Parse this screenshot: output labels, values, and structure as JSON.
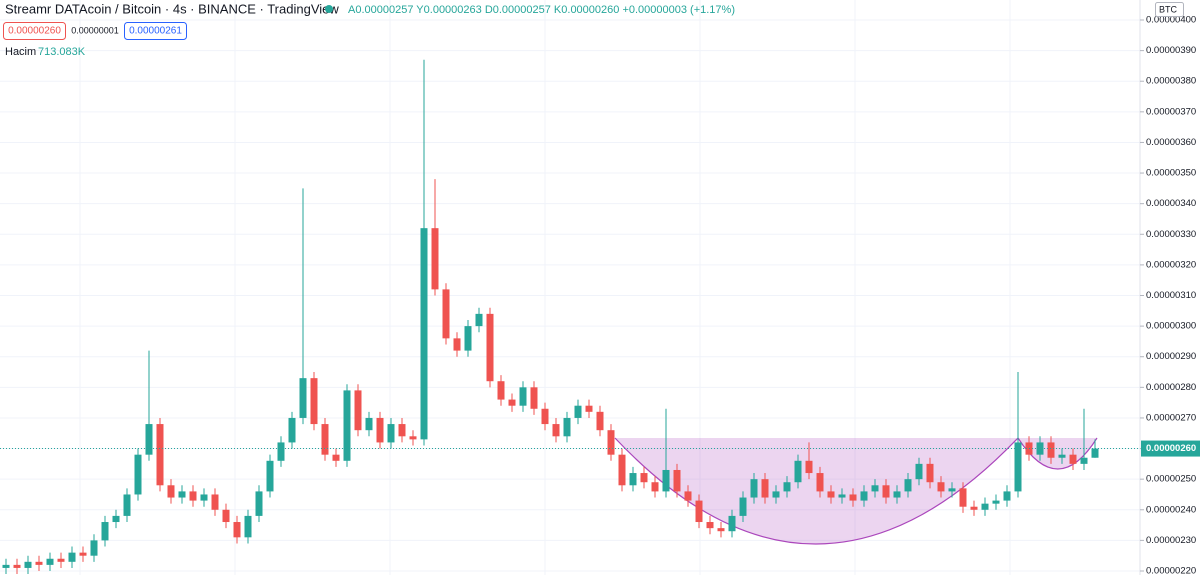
{
  "header": {
    "title": "Streamr DATAcoin / Bitcoin · 4s · BINANCE · TradingView",
    "ohlc": "A0.00000257 Y0.00000263 D0.00000257 K0.00000260 +0.00000003 (+1.17%)",
    "sell": "0.00000260",
    "spread": "0.00000001",
    "buy": "0.00000261",
    "volume_label": "Hacim",
    "volume_value": "713.083K",
    "currency": "BTC"
  },
  "chart_data": {
    "type": "candlestick",
    "grid": true,
    "up_color": "#26a69a",
    "down_color": "#ef5350",
    "ylim": [
      2.2e-06,
      4e-06
    ],
    "yticks": [
      {
        "value": 2.2e-06,
        "label": "0.00000220"
      },
      {
        "value": 2.3e-06,
        "label": "0.00000230"
      },
      {
        "value": 2.4e-06,
        "label": "0.00000240"
      },
      {
        "value": 2.5e-06,
        "label": "0.00000250"
      },
      {
        "value": 2.6e-06,
        "label": "0.00000260"
      },
      {
        "value": 2.7e-06,
        "label": "0.00000270"
      },
      {
        "value": 2.8e-06,
        "label": "0.00000280"
      },
      {
        "value": 2.9e-06,
        "label": "0.00000290"
      },
      {
        "value": 3e-06,
        "label": "0.00000300"
      },
      {
        "value": 3.1e-06,
        "label": "0.00000310"
      },
      {
        "value": 3.2e-06,
        "label": "0.00000320"
      },
      {
        "value": 3.3e-06,
        "label": "0.00000330"
      },
      {
        "value": 3.4e-06,
        "label": "0.00000340"
      },
      {
        "value": 3.5e-06,
        "label": "0.00000350"
      },
      {
        "value": 3.6e-06,
        "label": "0.00000360"
      },
      {
        "value": 3.7e-06,
        "label": "0.00000370"
      },
      {
        "value": 3.8e-06,
        "label": "0.00000380"
      },
      {
        "value": 3.9e-06,
        "label": "0.00000390"
      },
      {
        "value": 4e-06,
        "label": "0.00000400"
      }
    ],
    "last_price": {
      "value": 2.6e-06,
      "label": "0.00000260"
    },
    "open": [
      2.21e-06,
      2.22e-06,
      2.21e-06,
      2.23e-06,
      2.22e-06,
      2.24e-06,
      2.23e-06,
      2.26e-06,
      2.25e-06,
      2.3e-06,
      2.36e-06,
      2.38e-06,
      2.45e-06,
      2.58e-06,
      2.68e-06,
      2.48e-06,
      2.44e-06,
      2.46e-06,
      2.43e-06,
      2.45e-06,
      2.4e-06,
      2.36e-06,
      2.31e-06,
      2.38e-06,
      2.46e-06,
      2.56e-06,
      2.62e-06,
      2.7e-06,
      2.83e-06,
      2.68e-06,
      2.58e-06,
      2.56e-06,
      2.79e-06,
      2.66e-06,
      2.7e-06,
      2.62e-06,
      2.68e-06,
      2.64e-06,
      2.63e-06,
      3.32e-06,
      3.12e-06,
      2.96e-06,
      2.92e-06,
      3e-06,
      3.04e-06,
      2.82e-06,
      2.76e-06,
      2.74e-06,
      2.8e-06,
      2.73e-06,
      2.68e-06,
      2.64e-06,
      2.7e-06,
      2.74e-06,
      2.72e-06,
      2.66e-06,
      2.58e-06,
      2.48e-06,
      2.52e-06,
      2.49e-06,
      2.46e-06,
      2.53e-06,
      2.46e-06,
      2.43e-06,
      2.36e-06,
      2.34e-06,
      2.33e-06,
      2.38e-06,
      2.44e-06,
      2.5e-06,
      2.44e-06,
      2.46e-06,
      2.49e-06,
      2.56e-06,
      2.52e-06,
      2.46e-06,
      2.44e-06,
      2.45e-06,
      2.43e-06,
      2.46e-06,
      2.48e-06,
      2.44e-06,
      2.46e-06,
      2.5e-06,
      2.55e-06,
      2.49e-06,
      2.46e-06,
      2.47e-06,
      2.41e-06,
      2.4e-06,
      2.42e-06,
      2.43e-06,
      2.46e-06,
      2.62e-06,
      2.58e-06,
      2.62e-06,
      2.57e-06,
      2.58e-06,
      2.55e-06,
      2.57e-06
    ],
    "high": [
      2.24e-06,
      2.24e-06,
      2.25e-06,
      2.25e-06,
      2.26e-06,
      2.26e-06,
      2.28e-06,
      2.28e-06,
      2.32e-06,
      2.38e-06,
      2.4e-06,
      2.47e-06,
      2.6e-06,
      2.92e-06,
      2.7e-06,
      2.5e-06,
      2.48e-06,
      2.48e-06,
      2.47e-06,
      2.47e-06,
      2.42e-06,
      2.38e-06,
      2.4e-06,
      2.48e-06,
      2.58e-06,
      2.64e-06,
      2.72e-06,
      3.45e-06,
      2.85e-06,
      2.7e-06,
      2.6e-06,
      2.81e-06,
      2.81e-06,
      2.72e-06,
      2.72e-06,
      2.7e-06,
      2.7e-06,
      2.66e-06,
      3.87e-06,
      3.48e-06,
      3.14e-06,
      2.98e-06,
      3.02e-06,
      3.06e-06,
      3.06e-06,
      2.84e-06,
      2.78e-06,
      2.82e-06,
      2.82e-06,
      2.75e-06,
      2.7e-06,
      2.72e-06,
      2.76e-06,
      2.76e-06,
      2.74e-06,
      2.68e-06,
      2.6e-06,
      2.54e-06,
      2.54e-06,
      2.51e-06,
      2.73e-06,
      2.55e-06,
      2.48e-06,
      2.45e-06,
      2.38e-06,
      2.36e-06,
      2.4e-06,
      2.46e-06,
      2.52e-06,
      2.52e-06,
      2.48e-06,
      2.51e-06,
      2.58e-06,
      2.62e-06,
      2.54e-06,
      2.48e-06,
      2.47e-06,
      2.47e-06,
      2.48e-06,
      2.5e-06,
      2.5e-06,
      2.48e-06,
      2.52e-06,
      2.57e-06,
      2.57e-06,
      2.51e-06,
      2.49e-06,
      2.49e-06,
      2.43e-06,
      2.44e-06,
      2.45e-06,
      2.48e-06,
      2.85e-06,
      2.64e-06,
      2.64e-06,
      2.64e-06,
      2.6e-06,
      2.6e-06,
      2.73e-06,
      2.63e-06
    ],
    "low": [
      2.19e-06,
      2.19e-06,
      2.19e-06,
      2.2e-06,
      2.2e-06,
      2.21e-06,
      2.21e-06,
      2.23e-06,
      2.23e-06,
      2.28e-06,
      2.34e-06,
      2.36e-06,
      2.43e-06,
      2.56e-06,
      2.46e-06,
      2.42e-06,
      2.42e-06,
      2.41e-06,
      2.41e-06,
      2.38e-06,
      2.34e-06,
      2.29e-06,
      2.29e-06,
      2.36e-06,
      2.44e-06,
      2.54e-06,
      2.6e-06,
      2.68e-06,
      2.66e-06,
      2.56e-06,
      2.54e-06,
      2.54e-06,
      2.64e-06,
      2.64e-06,
      2.6e-06,
      2.6e-06,
      2.62e-06,
      2.61e-06,
      2.61e-06,
      3.1e-06,
      2.94e-06,
      2.9e-06,
      2.9e-06,
      2.98e-06,
      2.8e-06,
      2.74e-06,
      2.72e-06,
      2.72e-06,
      2.71e-06,
      2.66e-06,
      2.62e-06,
      2.62e-06,
      2.68e-06,
      2.7e-06,
      2.64e-06,
      2.56e-06,
      2.46e-06,
      2.46e-06,
      2.47e-06,
      2.44e-06,
      2.44e-06,
      2.44e-06,
      2.41e-06,
      2.34e-06,
      2.32e-06,
      2.31e-06,
      2.31e-06,
      2.36e-06,
      2.42e-06,
      2.42e-06,
      2.42e-06,
      2.44e-06,
      2.47e-06,
      2.5e-06,
      2.44e-06,
      2.42e-06,
      2.42e-06,
      2.41e-06,
      2.41e-06,
      2.44e-06,
      2.42e-06,
      2.42e-06,
      2.44e-06,
      2.48e-06,
      2.47e-06,
      2.44e-06,
      2.44e-06,
      2.39e-06,
      2.38e-06,
      2.38e-06,
      2.4e-06,
      2.41e-06,
      2.44e-06,
      2.56e-06,
      2.56e-06,
      2.55e-06,
      2.55e-06,
      2.53e-06,
      2.53e-06,
      2.57e-06
    ],
    "close": [
      2.22e-06,
      2.21e-06,
      2.23e-06,
      2.22e-06,
      2.24e-06,
      2.23e-06,
      2.26e-06,
      2.25e-06,
      2.3e-06,
      2.36e-06,
      2.38e-06,
      2.45e-06,
      2.58e-06,
      2.68e-06,
      2.48e-06,
      2.44e-06,
      2.46e-06,
      2.43e-06,
      2.45e-06,
      2.4e-06,
      2.36e-06,
      2.31e-06,
      2.38e-06,
      2.46e-06,
      2.56e-06,
      2.62e-06,
      2.7e-06,
      2.83e-06,
      2.68e-06,
      2.58e-06,
      2.56e-06,
      2.79e-06,
      2.66e-06,
      2.7e-06,
      2.62e-06,
      2.68e-06,
      2.64e-06,
      2.63e-06,
      3.32e-06,
      3.12e-06,
      2.96e-06,
      2.92e-06,
      3e-06,
      3.04e-06,
      2.82e-06,
      2.76e-06,
      2.74e-06,
      2.8e-06,
      2.73e-06,
      2.68e-06,
      2.64e-06,
      2.7e-06,
      2.74e-06,
      2.72e-06,
      2.66e-06,
      2.58e-06,
      2.48e-06,
      2.52e-06,
      2.49e-06,
      2.46e-06,
      2.53e-06,
      2.46e-06,
      2.43e-06,
      2.36e-06,
      2.34e-06,
      2.33e-06,
      2.38e-06,
      2.44e-06,
      2.5e-06,
      2.44e-06,
      2.46e-06,
      2.49e-06,
      2.56e-06,
      2.52e-06,
      2.46e-06,
      2.44e-06,
      2.45e-06,
      2.43e-06,
      2.46e-06,
      2.48e-06,
      2.44e-06,
      2.46e-06,
      2.5e-06,
      2.55e-06,
      2.49e-06,
      2.46e-06,
      2.47e-06,
      2.41e-06,
      2.4e-06,
      2.42e-06,
      2.43e-06,
      2.46e-06,
      2.62e-06,
      2.58e-06,
      2.62e-06,
      2.57e-06,
      2.58e-06,
      2.55e-06,
      2.57e-06,
      2.6e-06
    ]
  }
}
